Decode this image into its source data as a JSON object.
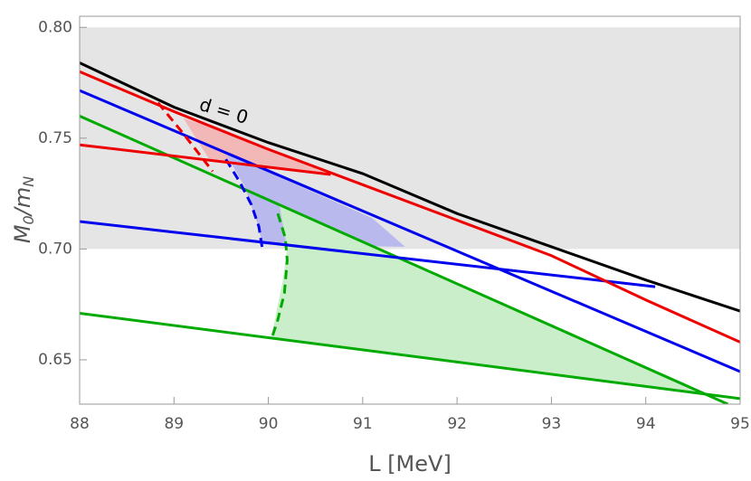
{
  "chart_data": {
    "type": "line",
    "xlabel": "L [MeV]",
    "ylabel_parts": [
      "M",
      "0",
      "/m",
      "N"
    ],
    "annotation": "d = 0",
    "xlim": [
      88,
      95
    ],
    "ylim": [
      0.63,
      0.805
    ],
    "xticks": [
      88,
      89,
      90,
      91,
      92,
      93,
      94,
      95
    ],
    "yticks": [
      {
        "value": 0.65,
        "label": "0.65"
      },
      {
        "value": 0.7,
        "label": "0.70"
      },
      {
        "value": 0.75,
        "label": "0.75"
      },
      {
        "value": 0.8,
        "label": "0.80"
      }
    ],
    "band": {
      "y": [
        0.7,
        0.8
      ],
      "color": "#e5e5e5"
    },
    "regions": [
      {
        "color": "#f2b8b8",
        "x": [
          89.1,
          89.38,
          90.63,
          89.6
        ],
        "y": [
          0.759,
          0.74,
          0.734,
          0.752
        ]
      },
      {
        "color": "#b9b9ee",
        "x": [
          89.55,
          89.75,
          89.88,
          89.94,
          91.45,
          91.1
        ],
        "y": [
          0.743,
          0.728,
          0.712,
          0.702,
          0.701,
          0.714
        ]
      },
      {
        "color": "#c9eec9",
        "x": [
          90.12,
          90.2,
          90.15,
          90.03,
          94.65
        ],
        "y": [
          0.7195,
          0.7,
          0.685,
          0.66,
          0.634
        ]
      }
    ],
    "series": [
      {
        "color": "#00aa00",
        "dashed": false,
        "x": [
          88,
          94.87
        ],
        "y": [
          0.76,
          0.63
        ]
      },
      {
        "color": "#00aa00",
        "dashed": false,
        "x": [
          88,
          95
        ],
        "y": [
          0.671,
          0.6325
        ]
      },
      {
        "color": "#00aa00",
        "dashed": true,
        "x": [
          90.1,
          90.18,
          90.2,
          90.17,
          90.1,
          90.03
        ],
        "y": [
          0.716,
          0.705,
          0.695,
          0.68,
          0.668,
          0.659
        ]
      },
      {
        "color": "#0000ee",
        "dashed": false,
        "x": [
          88,
          95
        ],
        "y": [
          0.7715,
          0.6447
        ]
      },
      {
        "color": "#0000ee",
        "dashed": false,
        "x": [
          88,
          94.1
        ],
        "y": [
          0.7124,
          0.683
        ]
      },
      {
        "color": "#0000ee",
        "dashed": true,
        "x": [
          89.55,
          89.7,
          89.82,
          89.9,
          89.94
        ],
        "y": [
          0.7405,
          0.73,
          0.72,
          0.71,
          0.699
        ]
      },
      {
        "color": "#ee0000",
        "dashed": false,
        "x": [
          88,
          89,
          90,
          91,
          92,
          93,
          94,
          95
        ],
        "y": [
          0.78,
          0.762,
          0.745,
          0.729,
          0.713,
          0.697,
          0.677,
          0.658
        ]
      },
      {
        "color": "#ee0000",
        "dashed": false,
        "x": [
          88,
          90.66
        ],
        "y": [
          0.747,
          0.7336
        ]
      },
      {
        "color": "#ee0000",
        "dashed": true,
        "x": [
          88.83,
          89.1,
          89.41
        ],
        "y": [
          0.766,
          0.752,
          0.735
        ]
      },
      {
        "color": "#000000",
        "dashed": false,
        "x": [
          88,
          89,
          90,
          91,
          92,
          93,
          94,
          95
        ],
        "y": [
          0.784,
          0.764,
          0.748,
          0.734,
          0.716,
          0.701,
          0.686,
          0.672
        ]
      }
    ]
  }
}
